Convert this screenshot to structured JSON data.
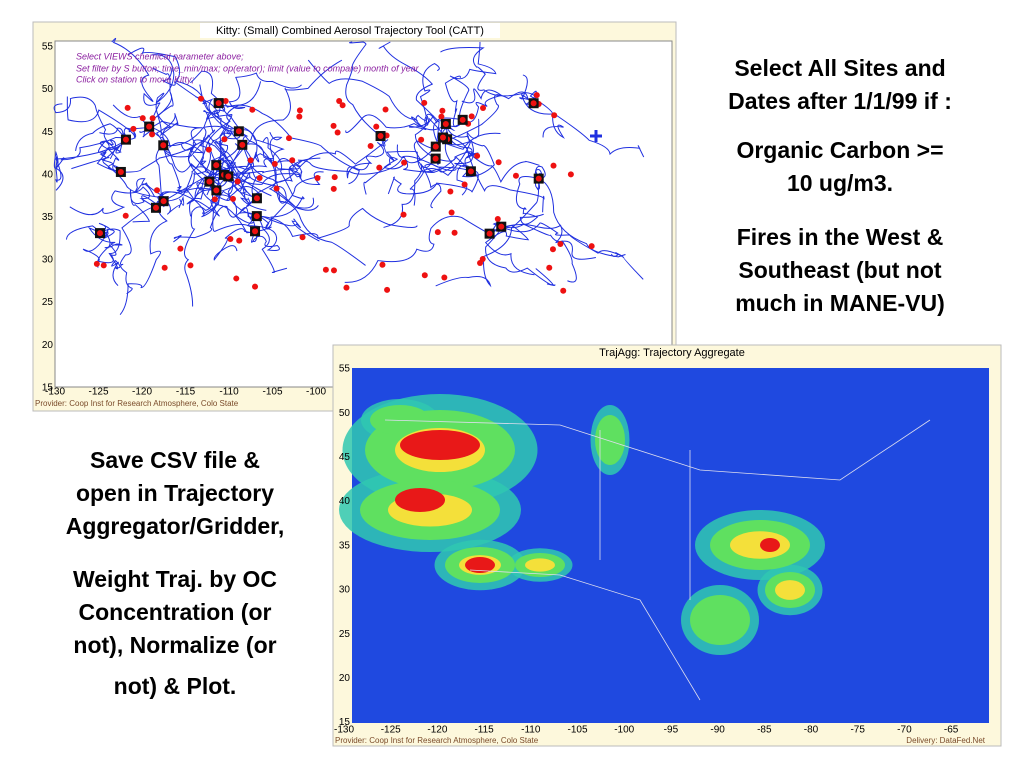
{
  "trajectory_window": {
    "title": "Kitty: (Small) Combined Aerosol Trajectory Tool (CATT)",
    "instructions": [
      "Select VIEWS chemical parameter above;",
      "Set filter by S button; time_min/max; op(erator); limit (value to compare) month of year",
      "Click on station to move Kitty;"
    ],
    "lat_ticks": [
      55,
      50,
      45,
      40,
      35,
      30,
      25,
      20,
      15
    ],
    "lon_ticks": [
      -130,
      -125,
      -120,
      -115,
      -110,
      -105,
      -100
    ],
    "provider": "Provider: Coop Inst for Research Atmosphere, Colo State"
  },
  "aggregate_window": {
    "title": "TrajAgg: Trajectory Aggregate",
    "lat_ticks": [
      55,
      50,
      45,
      40,
      35,
      30,
      25,
      20,
      15
    ],
    "lon_ticks": [
      -130,
      -125,
      -120,
      -115,
      -110,
      -105,
      -100,
      -95,
      -90,
      -85,
      -80,
      -75,
      -70,
      -65
    ],
    "provider": "Provider: Coop Inst for Research Atmosphere, Colo State",
    "delivery": "Delivery: DataFed.Net"
  },
  "notes": {
    "right": [
      [
        "Select All Sites and",
        "Dates after 1/1/99 if :"
      ],
      [
        "Organic Carbon >=",
        "10 ug/m3."
      ],
      [
        "Fires in the West &",
        "Southeast (but not",
        "much in MANE-VU)"
      ]
    ],
    "left": [
      [
        "Save CSV file &",
        "open in Trajectory",
        "Aggregator/Gridder,"
      ],
      [
        "Weight Traj. by OC",
        "Concentration (or",
        "not), Normalize (or",
        "not) & Plot."
      ]
    ]
  }
}
